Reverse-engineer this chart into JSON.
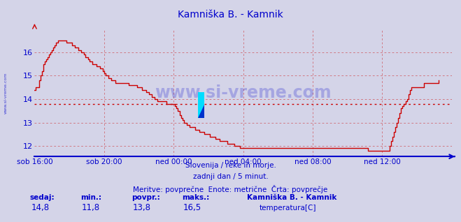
{
  "title": "Kamniška B. - Kamnik",
  "title_color": "#0000cc",
  "bg_color": "#d4d4e8",
  "plot_bg_color": "#d4d4e8",
  "line_color": "#cc0000",
  "avg_line_color": "#cc0000",
  "avg_value": 13.8,
  "x_axis_color": "#0000cc",
  "y_axis_color": "#0000cc",
  "grid_color": "#cc0000",
  "ylim": [
    11.55,
    17.0
  ],
  "yticks": [
    12,
    13,
    14,
    15,
    16
  ],
  "xtick_labels": [
    "sob 16:00",
    "sob 20:00",
    "ned 00:00",
    "ned 04:00",
    "ned 08:00",
    "ned 12:00"
  ],
  "xtick_positions": [
    0,
    48,
    96,
    144,
    192,
    240
  ],
  "total_points": 288,
  "watermark": "www.si-vreme.com",
  "subtitle1": "Slovenija / reke in morje.",
  "subtitle2": "zadnji dan / 5 minut.",
  "subtitle3": "Meritve: povprečne  Enote: metrične  Črta: povprečje",
  "footer_labels": [
    "sedaj:",
    "min.:",
    "povpr.:",
    "maks.:"
  ],
  "footer_values": [
    "14,8",
    "11,8",
    "13,8",
    "16,5"
  ],
  "legend_title": "Kamniška B. - Kamnik",
  "legend_label": "temperatura[C]",
  "legend_color": "#cc0000",
  "sidebar_text": "www.si-vreme.com",
  "temperature_data": [
    14.4,
    14.5,
    14.5,
    14.8,
    15.0,
    15.2,
    15.5,
    15.6,
    15.7,
    15.8,
    15.9,
    16.0,
    16.1,
    16.2,
    16.3,
    16.4,
    16.5,
    16.5,
    16.5,
    16.5,
    16.5,
    16.5,
    16.4,
    16.4,
    16.4,
    16.4,
    16.3,
    16.3,
    16.2,
    16.2,
    16.1,
    16.1,
    16.0,
    16.0,
    15.9,
    15.8,
    15.8,
    15.7,
    15.6,
    15.6,
    15.5,
    15.5,
    15.5,
    15.4,
    15.4,
    15.3,
    15.3,
    15.2,
    15.1,
    15.0,
    15.0,
    14.9,
    14.9,
    14.8,
    14.8,
    14.8,
    14.7,
    14.7,
    14.7,
    14.7,
    14.7,
    14.7,
    14.7,
    14.7,
    14.7,
    14.6,
    14.6,
    14.6,
    14.6,
    14.6,
    14.6,
    14.5,
    14.5,
    14.5,
    14.4,
    14.4,
    14.4,
    14.3,
    14.3,
    14.2,
    14.2,
    14.1,
    14.1,
    14.0,
    14.0,
    13.9,
    13.9,
    13.9,
    13.9,
    13.9,
    13.9,
    13.8,
    13.8,
    13.8,
    13.8,
    13.8,
    13.8,
    13.7,
    13.6,
    13.5,
    13.3,
    13.2,
    13.1,
    13.0,
    13.0,
    12.9,
    12.9,
    12.8,
    12.8,
    12.8,
    12.8,
    12.7,
    12.7,
    12.7,
    12.6,
    12.6,
    12.6,
    12.5,
    12.5,
    12.5,
    12.5,
    12.4,
    12.4,
    12.4,
    12.4,
    12.3,
    12.3,
    12.3,
    12.2,
    12.2,
    12.2,
    12.2,
    12.2,
    12.1,
    12.1,
    12.1,
    12.1,
    12.1,
    12.0,
    12.0,
    12.0,
    12.0,
    11.9,
    11.9,
    11.9,
    11.9,
    11.9,
    11.9,
    11.9,
    11.9,
    11.9,
    11.9,
    11.9,
    11.9,
    11.9,
    11.9,
    11.9,
    11.9,
    11.9,
    11.9,
    11.9,
    11.9,
    11.9,
    11.9,
    11.9,
    11.9,
    11.9,
    11.9,
    11.9,
    11.9,
    11.9,
    11.9,
    11.9,
    11.9,
    11.9,
    11.9,
    11.9,
    11.9,
    11.9,
    11.9,
    11.9,
    11.9,
    11.9,
    11.9,
    11.9,
    11.9,
    11.9,
    11.9,
    11.9,
    11.9,
    11.9,
    11.9,
    11.9,
    11.9,
    11.9,
    11.9,
    11.9,
    11.9,
    11.9,
    11.9,
    11.9,
    11.9,
    11.9,
    11.9,
    11.9,
    11.9,
    11.9,
    11.9,
    11.9,
    11.9,
    11.9,
    11.9,
    11.9,
    11.9,
    11.9,
    11.9,
    11.9,
    11.9,
    11.9,
    11.9,
    11.9,
    11.9,
    11.9,
    11.9,
    11.9,
    11.9,
    11.9,
    11.9,
    11.9,
    11.9,
    11.8,
    11.8,
    11.8,
    11.8,
    11.8,
    11.8,
    11.8,
    11.8,
    11.8,
    11.8,
    11.8,
    11.8,
    11.8,
    11.8,
    11.8,
    12.0,
    12.2,
    12.4,
    12.6,
    12.8,
    13.0,
    13.2,
    13.4,
    13.6,
    13.7,
    13.8,
    13.9,
    14.0,
    14.2,
    14.4,
    14.5,
    14.5,
    14.5,
    14.5,
    14.5,
    14.5,
    14.5,
    14.5,
    14.5,
    14.7,
    14.7,
    14.7,
    14.7,
    14.7,
    14.7,
    14.7,
    14.7,
    14.7,
    14.7,
    14.8
  ]
}
